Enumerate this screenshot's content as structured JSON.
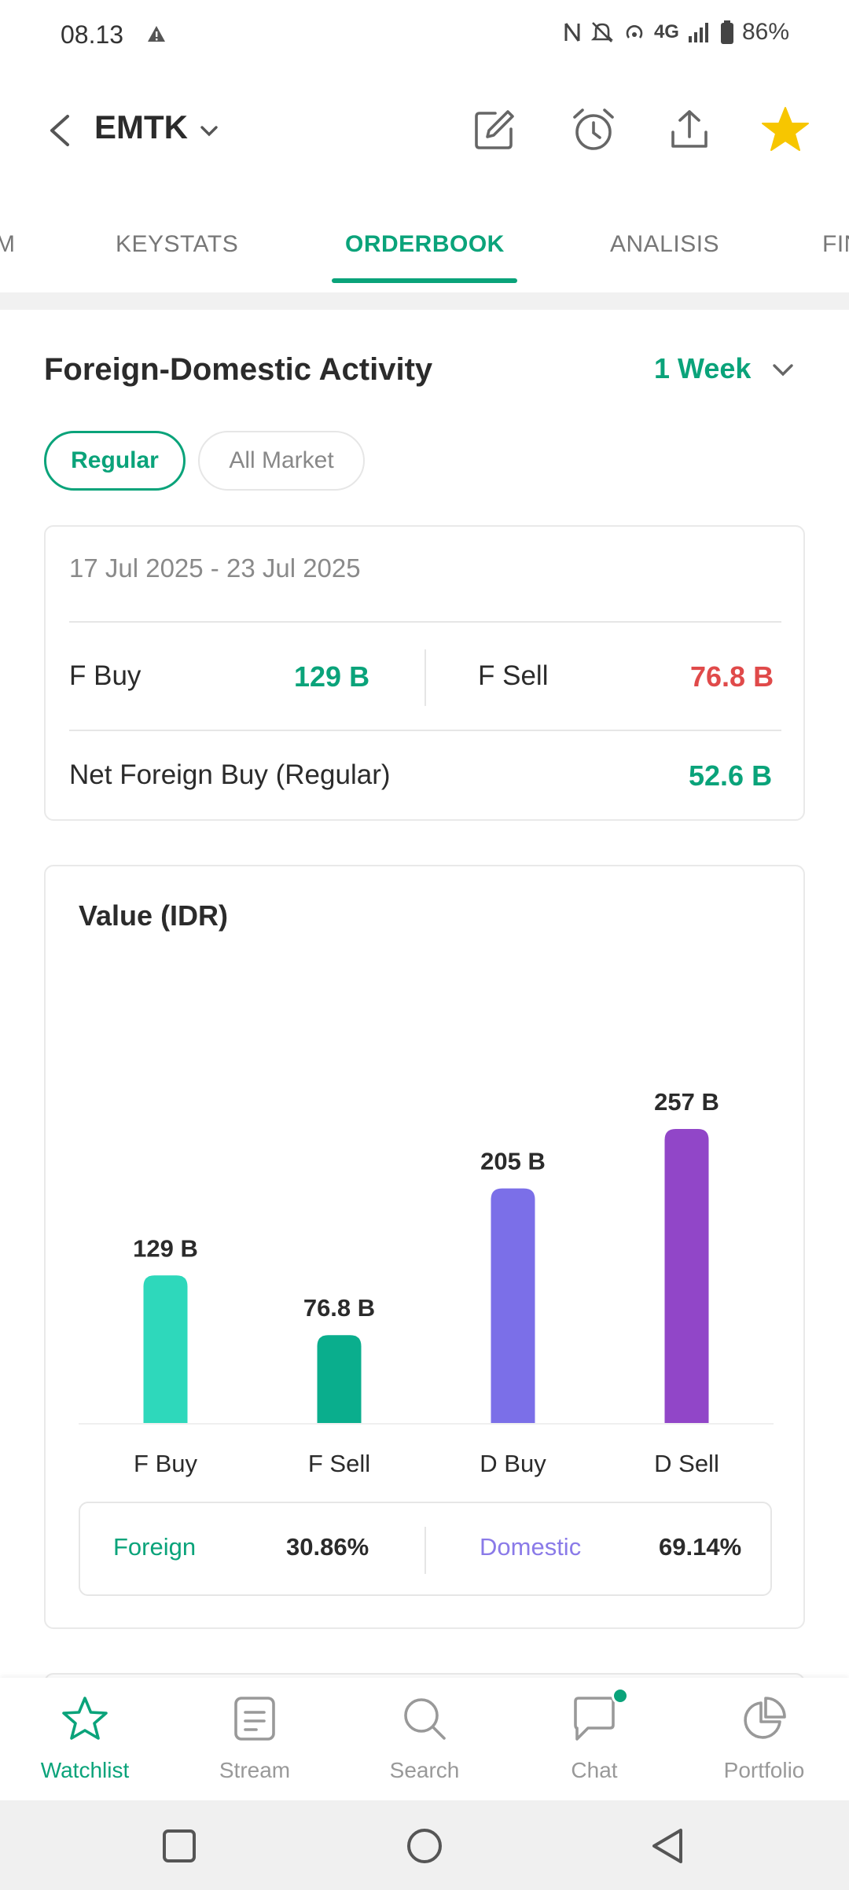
{
  "status_bar": {
    "time": "08.13",
    "battery": "86%",
    "network": "4G"
  },
  "header": {
    "ticker": "EMTK",
    "icons": [
      "edit-icon",
      "alarm-icon",
      "share-icon",
      "star-icon"
    ],
    "star_color": "#f7c600"
  },
  "tabs": {
    "items": [
      "M",
      "KEYSTATS",
      "ORDERBOOK",
      "ANALISIS",
      "FIN"
    ],
    "active": "ORDERBOOK"
  },
  "section": {
    "title": "Foreign-Domestic Activity",
    "period": "1 Week",
    "chips": [
      "Regular",
      "All Market"
    ],
    "active_chip": "Regular"
  },
  "summary": {
    "date_range": "17 Jul 2025 - 23 Jul 2025",
    "f_buy_label": "F Buy",
    "f_buy_value": "129 B",
    "f_sell_label": "F Sell",
    "f_sell_value": "76.8 B",
    "net_label": "Net Foreign Buy (Regular)",
    "net_value": "52.6 B"
  },
  "chart_data": {
    "type": "bar",
    "title": "Value (IDR)",
    "categories": [
      "F Buy",
      "F Sell",
      "D Buy",
      "D Sell"
    ],
    "values": [
      129,
      76.8,
      205,
      257
    ],
    "value_labels": [
      "129 B",
      "76.8 B",
      "205 B",
      "257 B"
    ],
    "colors": [
      "#2ed8bb",
      "#0aae8d",
      "#7b6fe8",
      "#9146c8"
    ],
    "ylim": [
      0,
      257
    ],
    "grid": false,
    "unit": "B"
  },
  "ratio": {
    "foreign_label": "Foreign",
    "foreign_value": "30.86%",
    "domestic_label": "Domestic",
    "domestic_value": "69.14%"
  },
  "colors": {
    "accent": "#0aa37a",
    "negative": "#e04a4a",
    "domestic": "#8a7ae8"
  },
  "bottom_nav": {
    "items": [
      {
        "label": "Watchlist",
        "icon": "star-outline-icon"
      },
      {
        "label": "Stream",
        "icon": "document-icon"
      },
      {
        "label": "Search",
        "icon": "search-icon"
      },
      {
        "label": "Chat",
        "icon": "chat-icon"
      },
      {
        "label": "Portfolio",
        "icon": "pie-chart-icon"
      }
    ],
    "active": "Watchlist"
  }
}
